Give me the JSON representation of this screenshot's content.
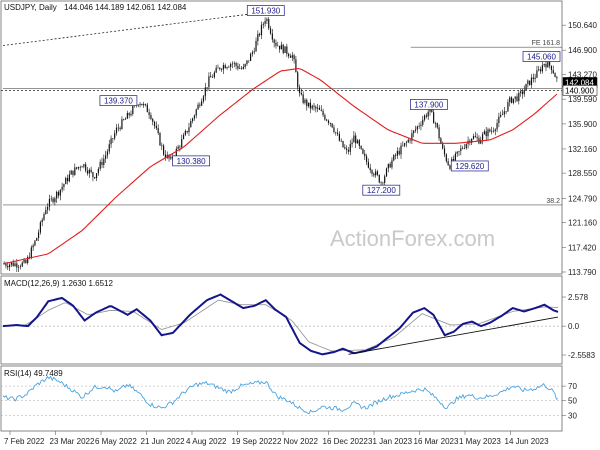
{
  "chart_data": [
    {
      "type": "candlestick",
      "symbol_label": "USDJPY, Daily",
      "ohlc_readout": "144.046 144.189 142.061 142.084",
      "watermark": "ActionForex.com",
      "x_ticks": [
        "7 Feb 2022",
        "23 Mar 2022",
        "6 May 2022",
        "21 Jun 2022",
        "4 Aug 2022",
        "19 Sep 2022",
        "2 Nov 2022",
        "16 Dec 2022",
        "31 Jan 2023",
        "16 Mar 2023",
        "1 May 2023",
        "14 Jun 2023"
      ],
      "y_ticks": [
        150.64,
        146.9,
        143.27,
        139.59,
        135.9,
        132.16,
        128.55,
        124.79,
        121.16,
        117.42,
        113.79
      ],
      "ylim": [
        113.79,
        153.8
      ],
      "price_path": [
        {
          "day": 0,
          "price": 115.0
        },
        {
          "day": 20,
          "price": 115.0
        },
        {
          "day": 30,
          "price": 119.0
        },
        {
          "day": 38,
          "price": 123.5
        },
        {
          "day": 50,
          "price": 126.0
        },
        {
          "day": 60,
          "price": 128.5
        },
        {
          "day": 70,
          "price": 130.0
        },
        {
          "day": 80,
          "price": 128.0
        },
        {
          "day": 90,
          "price": 131.0
        },
        {
          "day": 100,
          "price": 135.0
        },
        {
          "day": 110,
          "price": 137.0
        },
        {
          "day": 120,
          "price": 139.37
        },
        {
          "day": 130,
          "price": 137.5
        },
        {
          "day": 142,
          "price": 131.5
        },
        {
          "day": 148,
          "price": 130.38
        },
        {
          "day": 160,
          "price": 134.0
        },
        {
          "day": 172,
          "price": 138.5
        },
        {
          "day": 182,
          "price": 142.5
        },
        {
          "day": 192,
          "price": 144.5
        },
        {
          "day": 202,
          "price": 145.0
        },
        {
          "day": 212,
          "price": 144.0
        },
        {
          "day": 220,
          "price": 146.5
        },
        {
          "day": 232,
          "price": 151.93
        },
        {
          "day": 240,
          "price": 148.0
        },
        {
          "day": 248,
          "price": 147.0
        },
        {
          "day": 256,
          "price": 146.0
        },
        {
          "day": 262,
          "price": 140.0
        },
        {
          "day": 270,
          "price": 138.5
        },
        {
          "day": 278,
          "price": 138.0
        },
        {
          "day": 290,
          "price": 136.0
        },
        {
          "day": 298,
          "price": 133.0
        },
        {
          "day": 304,
          "price": 131.5
        },
        {
          "day": 310,
          "price": 134.0
        },
        {
          "day": 318,
          "price": 131.0
        },
        {
          "day": 326,
          "price": 129.0
        },
        {
          "day": 334,
          "price": 127.2
        },
        {
          "day": 342,
          "price": 130.0
        },
        {
          "day": 348,
          "price": 131.5
        },
        {
          "day": 356,
          "price": 133.0
        },
        {
          "day": 364,
          "price": 135.0
        },
        {
          "day": 370,
          "price": 136.5
        },
        {
          "day": 376,
          "price": 137.9
        },
        {
          "day": 382,
          "price": 136.0
        },
        {
          "day": 388,
          "price": 132.0
        },
        {
          "day": 394,
          "price": 129.62
        },
        {
          "day": 400,
          "price": 131.0
        },
        {
          "day": 406,
          "price": 132.5
        },
        {
          "day": 414,
          "price": 134.0
        },
        {
          "day": 420,
          "price": 133.5
        },
        {
          "day": 426,
          "price": 134.5
        },
        {
          "day": 432,
          "price": 135.0
        },
        {
          "day": 440,
          "price": 137.0
        },
        {
          "day": 448,
          "price": 139.5
        },
        {
          "day": 456,
          "price": 140.0
        },
        {
          "day": 464,
          "price": 142.0
        },
        {
          "day": 472,
          "price": 143.5
        },
        {
          "day": 478,
          "price": 145.06
        },
        {
          "day": 484,
          "price": 144.5
        },
        {
          "day": 490,
          "price": 142.08
        }
      ],
      "ma_path": [
        {
          "day": 0,
          "price": 115.0
        },
        {
          "day": 40,
          "price": 116.5
        },
        {
          "day": 70,
          "price": 120.0
        },
        {
          "day": 100,
          "price": 125.0
        },
        {
          "day": 130,
          "price": 129.5
        },
        {
          "day": 160,
          "price": 132.5
        },
        {
          "day": 190,
          "price": 137.0
        },
        {
          "day": 220,
          "price": 141.0
        },
        {
          "day": 245,
          "price": 143.8
        },
        {
          "day": 262,
          "price": 144.2
        },
        {
          "day": 280,
          "price": 142.5
        },
        {
          "day": 310,
          "price": 138.5
        },
        {
          "day": 340,
          "price": 135.0
        },
        {
          "day": 370,
          "price": 133.0
        },
        {
          "day": 400,
          "price": 133.0
        },
        {
          "day": 430,
          "price": 133.5
        },
        {
          "day": 450,
          "price": 135.0
        },
        {
          "day": 470,
          "price": 137.5
        },
        {
          "day": 490,
          "price": 140.5
        }
      ],
      "labels": [
        {
          "text": "151.930",
          "day": 232,
          "price": 151.93,
          "pos": "above"
        },
        {
          "text": "139.370",
          "day": 120,
          "price": 139.37,
          "pos": "left"
        },
        {
          "text": "130.380",
          "day": 148,
          "price": 130.38,
          "pos": "right"
        },
        {
          "text": "127.200",
          "day": 334,
          "price": 127.2,
          "pos": "below"
        },
        {
          "text": "137.900",
          "day": 376,
          "price": 137.9,
          "pos": "above"
        },
        {
          "text": "129.620",
          "day": 394,
          "price": 129.62,
          "pos": "right"
        },
        {
          "text": "145.060",
          "day": 478,
          "price": 145.06,
          "pos": "above"
        }
      ],
      "levels": [
        {
          "text": "FE 161.8",
          "price": 147.35,
          "day_start": 360,
          "style": "solid"
        },
        {
          "text": "38.2",
          "price": 123.8,
          "day_start": 0,
          "style": "solid"
        },
        {
          "text": "",
          "price": 141.15,
          "day_start": 0,
          "style": "solid"
        }
      ],
      "right_tags": [
        {
          "text": "142.084",
          "price": 142.084,
          "color": "#000000",
          "text_color": "#ffffff"
        },
        {
          "text": "140.900",
          "price": 140.9,
          "color": "#ffffff",
          "text_color": "#000000"
        }
      ],
      "dotted_line": {
        "from": {
          "day": 0,
          "price": 147.6
        },
        "to": {
          "day": 232,
          "price": 152.6
        }
      },
      "dotted_h": {
        "price": 140.9
      }
    },
    {
      "type": "line",
      "title": "MACD(12,26,9) 1.2630 1.6512",
      "y_ticks": [
        2.578,
        0.0,
        -2.5583
      ],
      "ylim": [
        -3.0,
        3.2
      ],
      "macd_path": [
        {
          "day": 0,
          "v": 0.0
        },
        {
          "day": 12,
          "v": 0.1
        },
        {
          "day": 22,
          "v": 0.0
        },
        {
          "day": 30,
          "v": 0.8
        },
        {
          "day": 40,
          "v": 2.2
        },
        {
          "day": 52,
          "v": 2.5
        },
        {
          "day": 62,
          "v": 1.8
        },
        {
          "day": 72,
          "v": 0.5
        },
        {
          "day": 82,
          "v": 1.2
        },
        {
          "day": 95,
          "v": 1.8
        },
        {
          "day": 110,
          "v": 1.0
        },
        {
          "day": 118,
          "v": 1.5
        },
        {
          "day": 130,
          "v": 0.5
        },
        {
          "day": 140,
          "v": -0.8
        },
        {
          "day": 150,
          "v": -0.6
        },
        {
          "day": 165,
          "v": 1.0
        },
        {
          "day": 180,
          "v": 2.3
        },
        {
          "day": 192,
          "v": 2.8
        },
        {
          "day": 202,
          "v": 2.2
        },
        {
          "day": 212,
          "v": 1.6
        },
        {
          "day": 222,
          "v": 1.8
        },
        {
          "day": 232,
          "v": 2.3
        },
        {
          "day": 240,
          "v": 1.5
        },
        {
          "day": 250,
          "v": 0.8
        },
        {
          "day": 262,
          "v": -1.5
        },
        {
          "day": 272,
          "v": -2.2
        },
        {
          "day": 282,
          "v": -2.5
        },
        {
          "day": 292,
          "v": -2.3
        },
        {
          "day": 300,
          "v": -2.0
        },
        {
          "day": 310,
          "v": -2.4
        },
        {
          "day": 320,
          "v": -2.2
        },
        {
          "day": 330,
          "v": -1.8
        },
        {
          "day": 340,
          "v": -1.0
        },
        {
          "day": 350,
          "v": -0.2
        },
        {
          "day": 362,
          "v": 1.2
        },
        {
          "day": 372,
          "v": 1.6
        },
        {
          "day": 380,
          "v": 1.0
        },
        {
          "day": 390,
          "v": -0.8
        },
        {
          "day": 398,
          "v": -0.5
        },
        {
          "day": 406,
          "v": 0.2
        },
        {
          "day": 414,
          "v": 0.4
        },
        {
          "day": 422,
          "v": 0.0
        },
        {
          "day": 430,
          "v": 0.3
        },
        {
          "day": 440,
          "v": 0.9
        },
        {
          "day": 450,
          "v": 1.6
        },
        {
          "day": 460,
          "v": 1.3
        },
        {
          "day": 470,
          "v": 1.6
        },
        {
          "day": 478,
          "v": 1.9
        },
        {
          "day": 486,
          "v": 1.4
        },
        {
          "day": 490,
          "v": 1.26
        }
      ],
      "signal_path": [
        {
          "day": 0,
          "v": 0.0
        },
        {
          "day": 20,
          "v": 0.1
        },
        {
          "day": 40,
          "v": 1.4
        },
        {
          "day": 55,
          "v": 2.1
        },
        {
          "day": 75,
          "v": 1.0
        },
        {
          "day": 95,
          "v": 1.4
        },
        {
          "day": 115,
          "v": 1.3
        },
        {
          "day": 140,
          "v": -0.3
        },
        {
          "day": 160,
          "v": 0.3
        },
        {
          "day": 190,
          "v": 2.3
        },
        {
          "day": 210,
          "v": 1.9
        },
        {
          "day": 232,
          "v": 1.9
        },
        {
          "day": 255,
          "v": 0.5
        },
        {
          "day": 270,
          "v": -1.4
        },
        {
          "day": 290,
          "v": -2.2
        },
        {
          "day": 320,
          "v": -2.1
        },
        {
          "day": 345,
          "v": -1.0
        },
        {
          "day": 370,
          "v": 1.1
        },
        {
          "day": 395,
          "v": 0.1
        },
        {
          "day": 420,
          "v": 0.2
        },
        {
          "day": 450,
          "v": 1.3
        },
        {
          "day": 478,
          "v": 1.7
        },
        {
          "day": 490,
          "v": 1.65
        }
      ],
      "trendline": {
        "from": {
          "day": 305,
          "v": -2.5
        },
        "to": {
          "day": 490,
          "v": 0.8
        }
      }
    },
    {
      "type": "line",
      "title": "RSI(14) 49.7489",
      "y_ticks": [
        70,
        50,
        30
      ],
      "ylim": [
        10,
        92
      ],
      "rsi_path": [
        {
          "day": 0,
          "v": 55
        },
        {
          "day": 10,
          "v": 52
        },
        {
          "day": 20,
          "v": 58
        },
        {
          "day": 30,
          "v": 72
        },
        {
          "day": 40,
          "v": 82
        },
        {
          "day": 50,
          "v": 76
        },
        {
          "day": 60,
          "v": 66
        },
        {
          "day": 70,
          "v": 55
        },
        {
          "day": 80,
          "v": 68
        },
        {
          "day": 90,
          "v": 70
        },
        {
          "day": 100,
          "v": 62
        },
        {
          "day": 110,
          "v": 72
        },
        {
          "day": 120,
          "v": 60
        },
        {
          "day": 130,
          "v": 45
        },
        {
          "day": 140,
          "v": 40
        },
        {
          "day": 150,
          "v": 48
        },
        {
          "day": 160,
          "v": 62
        },
        {
          "day": 170,
          "v": 72
        },
        {
          "day": 180,
          "v": 74
        },
        {
          "day": 190,
          "v": 68
        },
        {
          "day": 200,
          "v": 62
        },
        {
          "day": 210,
          "v": 70
        },
        {
          "day": 220,
          "v": 73
        },
        {
          "day": 232,
          "v": 76
        },
        {
          "day": 242,
          "v": 56
        },
        {
          "day": 252,
          "v": 50
        },
        {
          "day": 262,
          "v": 40
        },
        {
          "day": 272,
          "v": 34
        },
        {
          "day": 282,
          "v": 42
        },
        {
          "day": 292,
          "v": 40
        },
        {
          "day": 300,
          "v": 38
        },
        {
          "day": 310,
          "v": 46
        },
        {
          "day": 320,
          "v": 40
        },
        {
          "day": 330,
          "v": 48
        },
        {
          "day": 340,
          "v": 55
        },
        {
          "day": 350,
          "v": 58
        },
        {
          "day": 362,
          "v": 64
        },
        {
          "day": 372,
          "v": 66
        },
        {
          "day": 382,
          "v": 54
        },
        {
          "day": 392,
          "v": 40
        },
        {
          "day": 400,
          "v": 52
        },
        {
          "day": 410,
          "v": 58
        },
        {
          "day": 420,
          "v": 54
        },
        {
          "day": 430,
          "v": 56
        },
        {
          "day": 440,
          "v": 62
        },
        {
          "day": 450,
          "v": 70
        },
        {
          "day": 460,
          "v": 64
        },
        {
          "day": 470,
          "v": 67
        },
        {
          "day": 478,
          "v": 72
        },
        {
          "day": 486,
          "v": 62
        },
        {
          "day": 490,
          "v": 49.75
        }
      ]
    }
  ]
}
